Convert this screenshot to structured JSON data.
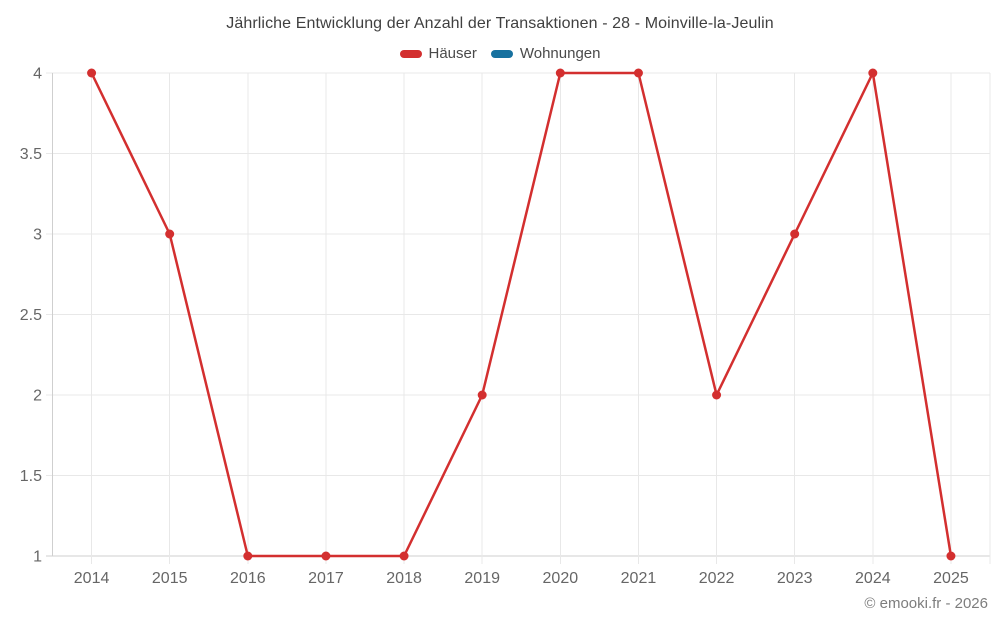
{
  "title": "Jährliche Entwicklung der Anzahl der Transaktionen - 28 - Moinville-la-Jeulin",
  "legend": {
    "items": [
      {
        "label": "Häuser",
        "color": "#d32f2f"
      },
      {
        "label": "Wohnungen",
        "color": "#17719f"
      }
    ]
  },
  "footer": {
    "credit": "© emooki.fr - 2026"
  },
  "chart_data": {
    "type": "line",
    "title": "Jährliche Entwicklung der Anzahl der Transaktionen - 28 - Moinville-la-Jeulin",
    "categories": [
      "2014",
      "2015",
      "2016",
      "2017",
      "2018",
      "2019",
      "2020",
      "2021",
      "2022",
      "2023",
      "2024",
      "2025"
    ],
    "series": [
      {
        "name": "Häuser",
        "color": "#d32f2f",
        "values": [
          4,
          3,
          1,
          1,
          1,
          2,
          4,
          4,
          2,
          3,
          4,
          1
        ]
      },
      {
        "name": "Wohnungen",
        "color": "#17719f",
        "values": []
      }
    ],
    "xlabel": "",
    "ylabel": "",
    "ylim": [
      1,
      4
    ],
    "yticks": [
      1,
      1.5,
      2,
      2.5,
      3,
      3.5,
      4
    ],
    "grid": true,
    "legend_position": "top",
    "colors": {
      "grid_line": "#e8e8e8",
      "axis_line": "#cfcfcf",
      "tick_label": "#666666"
    }
  }
}
